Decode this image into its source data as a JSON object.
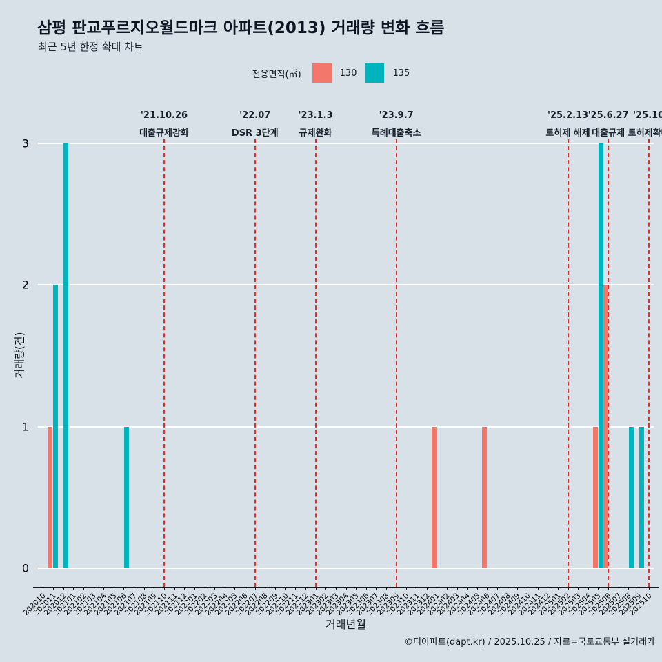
{
  "chart_data": {
    "type": "bar",
    "title": "삼평 판교푸르지오월드마크 아파트(2013) 거래량 변화 흐름",
    "subtitle": "최근 5년 한정 확대 차트",
    "xlabel": "거래년월",
    "ylabel": "거래량(건)",
    "ylim": [
      0,
      3
    ],
    "yticks": [
      0,
      1,
      2,
      3
    ],
    "grid": true,
    "legend_position": "top-center",
    "legend_title": "전용면적(㎡)",
    "annotation_color": "#ea2a24",
    "categories": [
      "202010",
      "202011",
      "202012",
      "202101",
      "202102",
      "202103",
      "202104",
      "202105",
      "202106",
      "202107",
      "202108",
      "202109",
      "202110",
      "202111",
      "202112",
      "202201",
      "202202",
      "202203",
      "202204",
      "202205",
      "202206",
      "202207",
      "202208",
      "202209",
      "202210",
      "202211",
      "202212",
      "202301",
      "202302",
      "202303",
      "202304",
      "202305",
      "202306",
      "202307",
      "202308",
      "202309",
      "202310",
      "202311",
      "202312",
      "202401",
      "202402",
      "202403",
      "202404",
      "202405",
      "202406",
      "202407",
      "202408",
      "202409",
      "202410",
      "202411",
      "202412",
      "202501",
      "202502",
      "202503",
      "202504",
      "202505",
      "202506",
      "202507",
      "202508",
      "202509",
      "202510"
    ],
    "series": [
      {
        "name": "130",
        "color": "#f4776b",
        "values": [
          0,
          1,
          0,
          0,
          0,
          0,
          0,
          0,
          0,
          0,
          0,
          0,
          0,
          0,
          0,
          0,
          0,
          0,
          0,
          0,
          0,
          0,
          0,
          0,
          0,
          0,
          0,
          0,
          0,
          0,
          0,
          0,
          0,
          0,
          0,
          0,
          0,
          0,
          0,
          1,
          0,
          0,
          0,
          0,
          1,
          0,
          0,
          0,
          0,
          0,
          0,
          0,
          0,
          0,
          0,
          1,
          2,
          0,
          0,
          0,
          0
        ]
      },
      {
        "name": "135",
        "color": "#00b4bd",
        "values": [
          0,
          2,
          3,
          0,
          0,
          0,
          0,
          0,
          1,
          0,
          0,
          0,
          0,
          0,
          0,
          0,
          0,
          0,
          0,
          0,
          0,
          0,
          0,
          0,
          0,
          0,
          0,
          0,
          0,
          0,
          0,
          0,
          0,
          0,
          0,
          0,
          0,
          0,
          0,
          0,
          0,
          0,
          0,
          0,
          0,
          0,
          0,
          0,
          0,
          0,
          0,
          0,
          0,
          0,
          0,
          3,
          0,
          0,
          1,
          1,
          0
        ]
      }
    ],
    "annotations": [
      {
        "month": "202110",
        "date": "'21.10.26",
        "label": "대출규제강화"
      },
      {
        "month": "202207",
        "date": "'22.07",
        "label": "DSR 3단계"
      },
      {
        "month": "202301",
        "date": "'23.1.3",
        "label": "규제완화"
      },
      {
        "month": "202309",
        "date": "'23.9.7",
        "label": "특례대출축소"
      },
      {
        "month": "202502",
        "date": "'25.2.13",
        "label": "토허제 해제"
      },
      {
        "month": "202506",
        "date": "'25.6.27",
        "label": "대출규제"
      },
      {
        "month": "202510",
        "date": "'25.10",
        "label": "토허제확대"
      }
    ]
  },
  "footer": {
    "credit": "©디아파트(dapt.kr) / 2025.10.25 / 자료=국토교통부 실거래가"
  }
}
